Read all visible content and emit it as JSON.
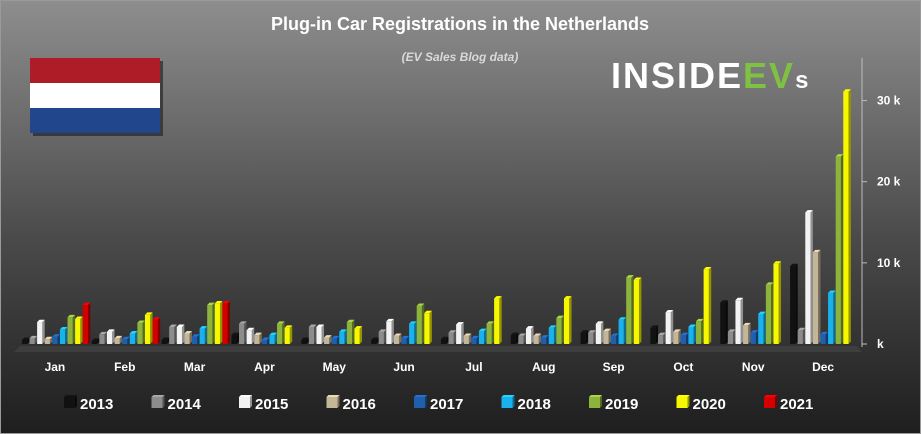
{
  "colors": {
    "2013": "#111111",
    "2014": "#8c8c8c",
    "2015": "#f2f2f2",
    "2016": "#c4b698",
    "2017": "#1f5fae",
    "2018": "#1ab2ec",
    "2019": "#8db33c",
    "2020": "#f7f700",
    "2021": "#d40000",
    "logo_accent": "#7fc241",
    "flag_red": "#ae1c28",
    "flag_white": "#ffffff",
    "flag_blue": "#21468b"
  },
  "logo": {
    "text_main": "INSIDE",
    "text_accent": "EV",
    "text_small": "s"
  },
  "flag_icon": "netherlands-flag",
  "chart_data": {
    "type": "bar",
    "title": "Plug-in Car Registrations in the Netherlands",
    "subtitle": "(EV Sales Blog data)",
    "xlabel": "",
    "ylabel": "",
    "ylim": [
      0,
      35000
    ],
    "yticks": [
      0,
      10000,
      20000,
      30000
    ],
    "ytick_labels": [
      "k",
      "10 k",
      "20 k",
      "30 k"
    ],
    "y_axis_position": "right",
    "grid": false,
    "legend_position": "bottom",
    "categories": [
      "Jan",
      "Feb",
      "Mar",
      "Apr",
      "May",
      "Jun",
      "Jul",
      "Aug",
      "Sep",
      "Oct",
      "Nov",
      "Dec"
    ],
    "series": [
      {
        "name": "2013",
        "values": [
          500,
          400,
          500,
          1100,
          500,
          500,
          600,
          1100,
          1400,
          2000,
          5100,
          9600
        ]
      },
      {
        "name": "2014",
        "values": [
          700,
          1200,
          2100,
          2500,
          2100,
          1500,
          1400,
          1000,
          1400,
          1100,
          1500,
          1700
        ]
      },
      {
        "name": "2015",
        "values": [
          2700,
          1500,
          2100,
          1700,
          2100,
          2800,
          2400,
          1900,
          2500,
          3900,
          5400,
          16200
        ]
      },
      {
        "name": "2016",
        "values": [
          600,
          700,
          1300,
          1100,
          800,
          1000,
          1000,
          1000,
          1600,
          1500,
          2300,
          11300
        ]
      },
      {
        "name": "2017",
        "values": [
          900,
          600,
          900,
          500,
          700,
          700,
          700,
          800,
          1000,
          1100,
          1400,
          1200
        ]
      },
      {
        "name": "2018",
        "values": [
          1800,
          1300,
          1900,
          1100,
          1500,
          2500,
          1600,
          2000,
          3000,
          2100,
          3700,
          6300
        ]
      },
      {
        "name": "2019",
        "values": [
          3300,
          2600,
          4800,
          2500,
          2700,
          4700,
          2500,
          3200,
          8200,
          2800,
          7300,
          23100
        ]
      },
      {
        "name": "2020",
        "values": [
          3100,
          3600,
          5000,
          2000,
          1900,
          3800,
          5600,
          5600,
          7900,
          9200,
          9900,
          31100
        ]
      },
      {
        "name": "2021",
        "values": [
          4800,
          3000,
          5000,
          null,
          null,
          null,
          null,
          null,
          null,
          null,
          null,
          null
        ]
      }
    ]
  }
}
